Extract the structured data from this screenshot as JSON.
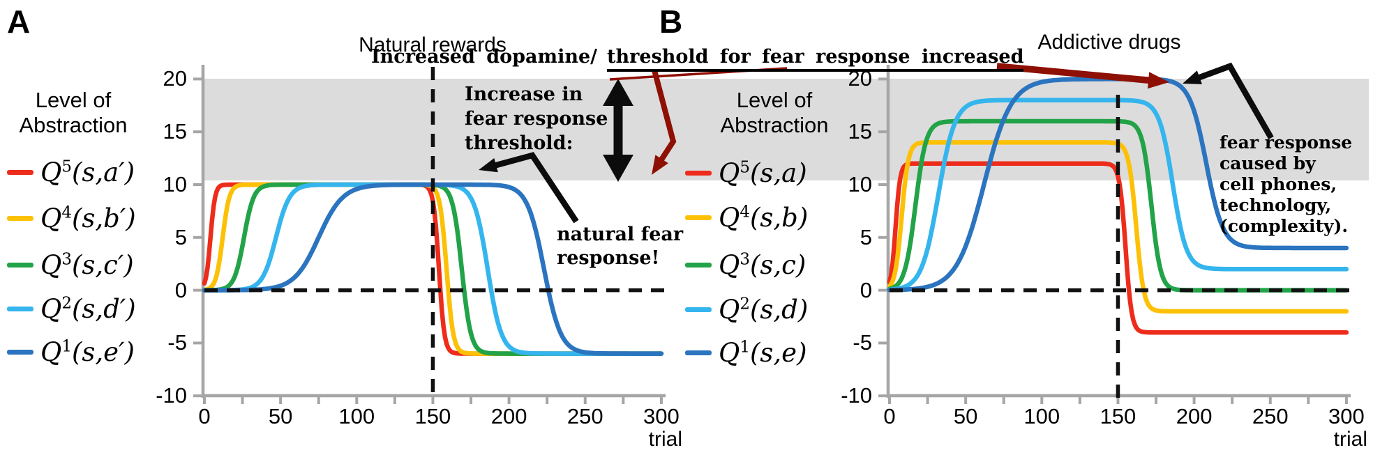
{
  "colors": {
    "dark_red": "#8e1004",
    "band_gray": "#dcdcdc",
    "axis_gray": "#a6a6a6",
    "dash_black": "#111111",
    "arrow_black": "#0c0c0c"
  },
  "annotations": {
    "increased_dopamine": "Increased dopamine/",
    "threshold_increased": "threshold for fear response increased",
    "increase_in_threshold": "Increase in\nfear response\nthreshold:",
    "natural_fear": "natural fear\nresponse!",
    "fear_caused": "fear response\ncaused by\ncell phones,\ntechnology,\n(complexity)."
  },
  "chart_data": [
    {
      "id": "A",
      "panel_label": "A",
      "type": "line",
      "title": "Natural rewards",
      "level_label": "Level of\nAbstraction",
      "xlabel": "trial",
      "xlim": [
        0,
        300
      ],
      "ylim": [
        -10,
        20
      ],
      "x_ticks": [
        0,
        50,
        100,
        150,
        200,
        250,
        300
      ],
      "x_minor_step": 25,
      "y_ticks": [
        20,
        15,
        10,
        5,
        0,
        -5,
        -10
      ],
      "grid": false,
      "legend_position": "left",
      "shaded_band": {
        "from": 10.5,
        "to": 20.2
      },
      "dashed_horizontal_at": 0,
      "dashed_vertical_at": 150,
      "series": [
        {
          "label": "Q5(s,a′)",
          "base": "Q",
          "sup": "5",
          "args": "(s,a′)",
          "color": "#ee2c1c",
          "plateau": 10,
          "final": -6,
          "rise_mid": 4,
          "rise_width": 1.5,
          "drop_mid": 154,
          "drop_width": 1.8
        },
        {
          "label": "Q4(s,b′)",
          "base": "Q",
          "sup": "4",
          "args": "(s,b′)",
          "color": "#fcc106",
          "plateau": 10,
          "final": -6,
          "rise_mid": 12,
          "rise_width": 2.2,
          "drop_mid": 159,
          "drop_width": 2.2
        },
        {
          "label": "Q3(s,c′)",
          "base": "Q",
          "sup": "3",
          "args": "(s,c′)",
          "color": "#22a348",
          "plateau": 10,
          "final": -6,
          "rise_mid": 26,
          "rise_width": 3.2,
          "drop_mid": 169,
          "drop_width": 3.0
        },
        {
          "label": "Q2(s,d′)",
          "base": "Q",
          "sup": "2",
          "args": "(s,d′)",
          "color": "#35b5ee",
          "plateau": 10,
          "final": -6,
          "rise_mid": 47,
          "rise_width": 4.5,
          "drop_mid": 186,
          "drop_width": 4.5
        },
        {
          "label": "Q1(s,e′)",
          "base": "Q",
          "sup": "1",
          "args": "(s,e′)",
          "color": "#2b74bf",
          "plateau": 10,
          "final": -6,
          "rise_mid": 75,
          "rise_width": 8.0,
          "drop_mid": 223,
          "drop_width": 5.5
        }
      ]
    },
    {
      "id": "B",
      "panel_label": "B",
      "type": "line",
      "title": "Addictive drugs",
      "level_label": "Level of\nAbstraction",
      "xlabel": "trial",
      "xlim": [
        0,
        300
      ],
      "ylim": [
        -10,
        20
      ],
      "x_ticks": [
        0,
        50,
        100,
        150,
        200,
        250,
        300
      ],
      "x_minor_step": 25,
      "y_ticks": [
        20,
        15,
        10,
        5,
        0,
        -5,
        -10
      ],
      "grid": false,
      "legend_position": "left",
      "shaded_band": {
        "from": 10.5,
        "to": 20.2
      },
      "dashed_horizontal_at": 0,
      "dashed_vertical_at": 150,
      "series": [
        {
          "label": "Q5(s,a)",
          "base": "Q",
          "sup": "5",
          "args": "(s,a)",
          "color": "#ee2c1c",
          "plateau": 12,
          "final": -4,
          "rise_mid": 4,
          "rise_width": 1.5,
          "drop_mid": 155,
          "drop_width": 2.0
        },
        {
          "label": "Q4(s,b)",
          "base": "Q",
          "sup": "4",
          "args": "(s,b)",
          "color": "#fcc106",
          "plateau": 14,
          "final": -2,
          "rise_mid": 8,
          "rise_width": 2.2,
          "drop_mid": 162,
          "drop_width": 2.5
        },
        {
          "label": "Q3(s,c)",
          "base": "Q",
          "sup": "3",
          "args": "(s,c)",
          "color": "#22a348",
          "plateau": 16,
          "final": 0,
          "rise_mid": 17,
          "rise_width": 3.5,
          "drop_mid": 172,
          "drop_width": 3.0
        },
        {
          "label": "Q2(s,d)",
          "base": "Q",
          "sup": "2",
          "args": "(s,d)",
          "color": "#35b5ee",
          "plateau": 18,
          "final": 2,
          "rise_mid": 32,
          "rise_width": 5.5,
          "drop_mid": 186,
          "drop_width": 4.5
        },
        {
          "label": "Q1(s,e)",
          "base": "Q",
          "sup": "1",
          "args": "(s,e)",
          "color": "#2b74bf",
          "plateau": 20,
          "final": 4,
          "rise_mid": 62,
          "rise_width": 9.0,
          "drop_mid": 208,
          "drop_width": 5.5
        }
      ]
    }
  ]
}
